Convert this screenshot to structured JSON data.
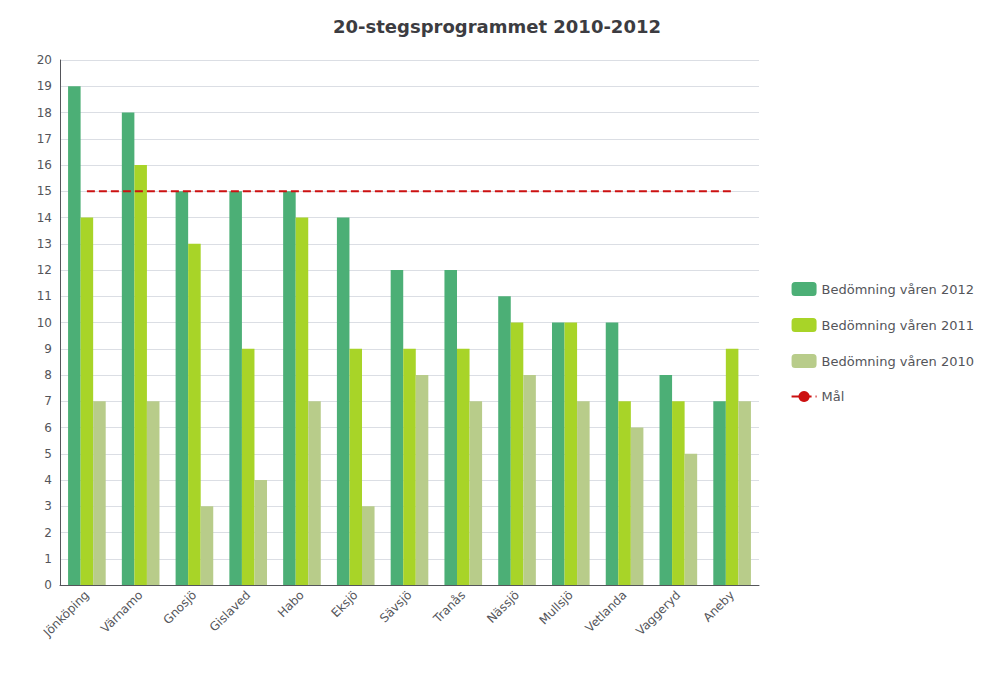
{
  "chart_data": {
    "type": "bar",
    "title": "20-stegsprogrammet 2010-2012",
    "categories": [
      "Jönköping",
      "Värnamo",
      "Gnosjö",
      "Gislaved",
      "Habo",
      "Eksjö",
      "Sävsjö",
      "Tranås",
      "Nässjö",
      "Mullsjö",
      "Vetlanda",
      "Vaggeryd",
      "Aneby"
    ],
    "series": [
      {
        "name": "Bedömning våren 2012",
        "color": "#4CAF76",
        "values": [
          19,
          18,
          15,
          15,
          15,
          14,
          12,
          12,
          11,
          10,
          10,
          8,
          7
        ]
      },
      {
        "name": "Bedömning våren 2011",
        "color": "#A8D428",
        "values": [
          14,
          16,
          13,
          9,
          14,
          9,
          9,
          9,
          10,
          10,
          7,
          7,
          9
        ]
      },
      {
        "name": "Bedömning våren 2010",
        "color": "#B8CC8A",
        "values": [
          7,
          7,
          3,
          4,
          7,
          3,
          8,
          7,
          8,
          7,
          6,
          5,
          7
        ]
      },
      {
        "name": "Mål",
        "type": "line",
        "line_style": "dashed",
        "color": "#CC1111",
        "values": [
          15,
          15,
          15,
          15,
          15,
          15,
          15,
          15,
          15,
          15,
          15,
          15,
          15
        ]
      }
    ],
    "ylim": [
      0,
      20
    ],
    "yticks": [
      0,
      1,
      2,
      3,
      4,
      5,
      6,
      7,
      8,
      9,
      10,
      11,
      12,
      13,
      14,
      15,
      16,
      17,
      18,
      19,
      20
    ],
    "grid": true,
    "legend": "right"
  }
}
